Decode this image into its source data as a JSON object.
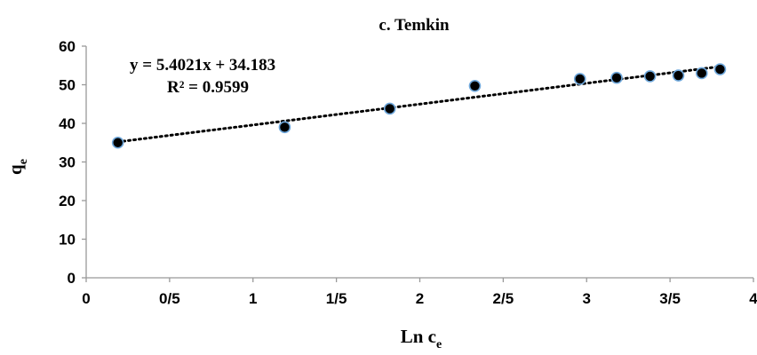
{
  "chart_data": {
    "type": "scatter",
    "title": "c. Temkin",
    "xlabel": "Ln c",
    "xlabel_sub": "e",
    "ylabel": "q",
    "ylabel_sub": "e",
    "xlim": [
      0,
      4
    ],
    "ylim": [
      0,
      60
    ],
    "x_ticks": [
      0,
      0.5,
      1,
      1.5,
      2,
      2.5,
      3,
      3.5,
      4
    ],
    "x_tick_labels": [
      "0",
      "0/5",
      "1",
      "1/5",
      "2",
      "2/5",
      "3",
      "3/5",
      "4"
    ],
    "y_ticks": [
      0,
      10,
      20,
      30,
      40,
      50,
      60
    ],
    "y_tick_labels": [
      "0",
      "10",
      "20",
      "30",
      "40",
      "50",
      "60"
    ],
    "grid": false,
    "points": [
      {
        "x": 0.19,
        "y": 35.0
      },
      {
        "x": 1.19,
        "y": 39.0
      },
      {
        "x": 1.82,
        "y": 43.8
      },
      {
        "x": 2.33,
        "y": 49.7
      },
      {
        "x": 2.96,
        "y": 51.5
      },
      {
        "x": 3.18,
        "y": 51.8
      },
      {
        "x": 3.38,
        "y": 52.2
      },
      {
        "x": 3.55,
        "y": 52.4
      },
      {
        "x": 3.69,
        "y": 53.0
      },
      {
        "x": 3.8,
        "y": 54.0
      }
    ],
    "trendline": {
      "type": "linear",
      "slope": 5.4021,
      "intercept": 34.183,
      "x_range": [
        0.19,
        3.8
      ]
    },
    "equation_text": "y = 5.4021x + 34.183",
    "r2_text": "R² = 0.9599",
    "marker_fill": "#000000",
    "marker_stroke": "#6fa8dc",
    "trendline_color": "#000000"
  }
}
